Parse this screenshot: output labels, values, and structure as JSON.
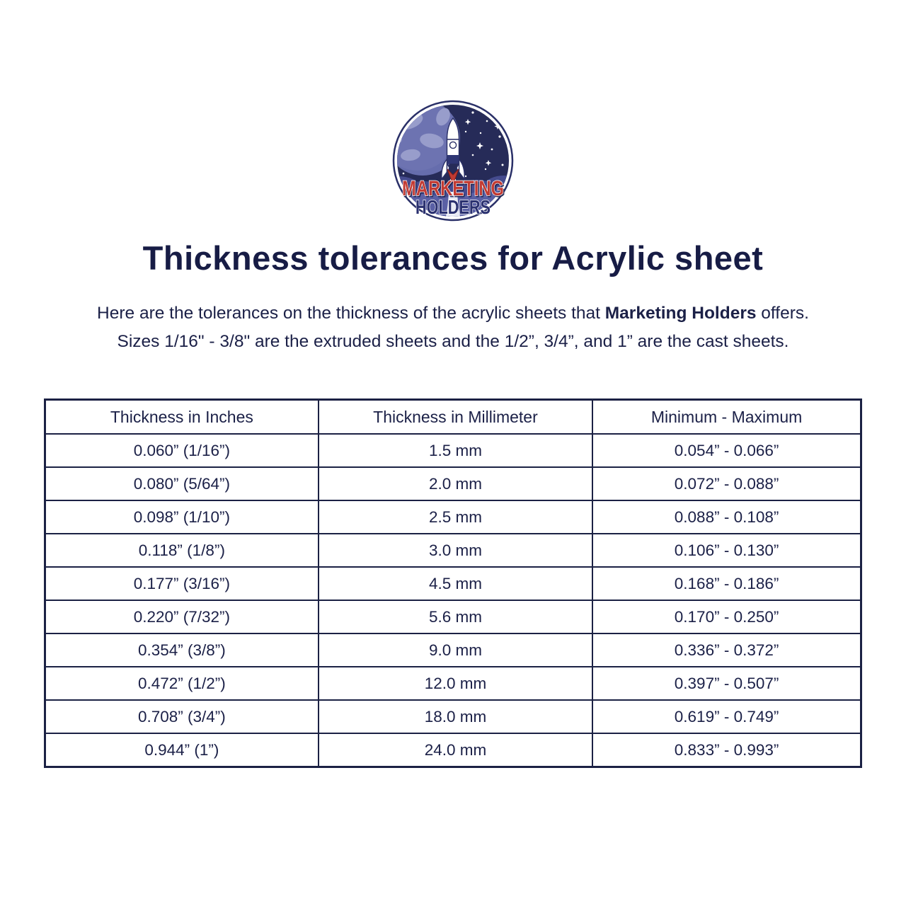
{
  "page": {
    "title": "Thickness tolerances for Acrylic sheet",
    "subtitle": {
      "line1_prefix": "Here are the tolerances on the thickness of the acrylic sheets that ",
      "line1_bold": "Marketing Holders",
      "line1_suffix": " offers.",
      "line2": "Sizes 1/16\" - 3/8\" are the extruded sheets and the 1/2”, 3/4”, and 1” are the cast sheets."
    },
    "background_color": "#ffffff",
    "text_color": "#1b2047"
  },
  "logo": {
    "name": "marketing-holders-logo",
    "line1": "MARKETING",
    "line2": "HOLDERS",
    "colors": {
      "red": "#c23b33",
      "navy": "#2b3170",
      "sky": "#262b58",
      "planet": "#666dad",
      "planet_land": "#989dcb",
      "cloud_dark": "#454b8e",
      "cloud_mid": "#5a60a5"
    }
  },
  "table": {
    "name": "acrylic-thickness-tolerances",
    "border_color": "#1b2144",
    "headers": [
      "Thickness in Inches",
      "Thickness in Millimeter",
      "Minimum - Maximum"
    ],
    "rows": [
      [
        "0.060” (1/16”)",
        "1.5 mm",
        "0.054” - 0.066”"
      ],
      [
        "0.080” (5/64”)",
        "2.0 mm",
        "0.072” - 0.088”"
      ],
      [
        "0.098” (1/10”)",
        "2.5 mm",
        "0.088” - 0.108”"
      ],
      [
        "0.118” (1/8”)",
        "3.0 mm",
        "0.106” - 0.130”"
      ],
      [
        "0.177” (3/16”)",
        "4.5 mm",
        "0.168” - 0.186”"
      ],
      [
        "0.220” (7/32”)",
        "5.6 mm",
        "0.170” - 0.250”"
      ],
      [
        "0.354” (3/8”)",
        "9.0 mm",
        "0.336” - 0.372”"
      ],
      [
        "0.472” (1/2”)",
        "12.0 mm",
        "0.397” - 0.507”"
      ],
      [
        "0.708” (3/4”)",
        "18.0 mm",
        "0.619” - 0.749”"
      ],
      [
        "0.944” (1”)",
        "24.0 mm",
        "0.833” - 0.993”"
      ]
    ]
  }
}
